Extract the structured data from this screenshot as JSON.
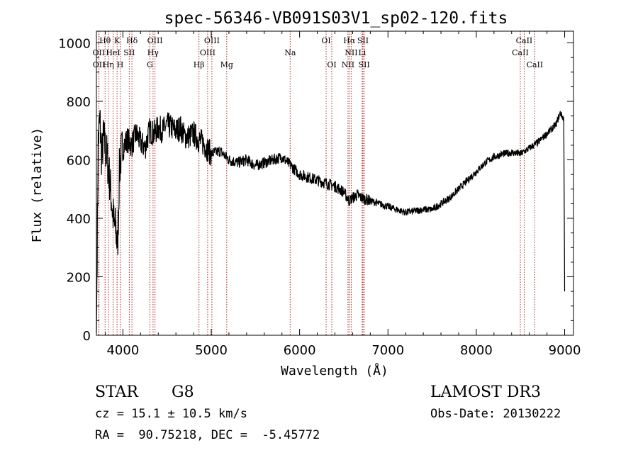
{
  "chart_data": {
    "type": "line",
    "title": "spec-56346-VB091S03V1_sp02-120.fits",
    "xlabel": "Wavelength (Å)",
    "ylabel": "Flux (relative)",
    "xlim": [
      3700,
      9100
    ],
    "ylim": [
      0,
      1040
    ],
    "xticks": [
      4000,
      5000,
      6000,
      7000,
      8000,
      9000
    ],
    "yticks": [
      0,
      200,
      400,
      600,
      800,
      1000
    ],
    "grid": false,
    "series": [
      {
        "name": "flux",
        "color": "#000000",
        "x": [
          3700,
          3720,
          3740,
          3760,
          3780,
          3800,
          3820,
          3840,
          3860,
          3880,
          3900,
          3920,
          3940,
          3960,
          3980,
          4000,
          4050,
          4100,
          4150,
          4200,
          4250,
          4300,
          4350,
          4400,
          4450,
          4500,
          4550,
          4600,
          4650,
          4700,
          4750,
          4800,
          4850,
          4900,
          4950,
          5000,
          5100,
          5200,
          5300,
          5400,
          5500,
          5600,
          5700,
          5800,
          5900,
          6000,
          6100,
          6200,
          6300,
          6400,
          6500,
          6560,
          6600,
          6650,
          6700,
          6800,
          6900,
          7000,
          7100,
          7200,
          7300,
          7400,
          7500,
          7600,
          7700,
          7800,
          7900,
          8000,
          8100,
          8200,
          8300,
          8400,
          8500,
          8600,
          8700,
          8800,
          8900,
          8950,
          8990,
          9000
        ],
        "y": [
          10,
          660,
          740,
          600,
          680,
          640,
          610,
          560,
          500,
          430,
          380,
          360,
          300,
          560,
          620,
          640,
          670,
          650,
          690,
          660,
          640,
          700,
          690,
          710,
          700,
          720,
          710,
          700,
          710,
          680,
          680,
          690,
          670,
          660,
          640,
          620,
          630,
          600,
          590,
          600,
          580,
          590,
          600,
          610,
          580,
          550,
          540,
          530,
          520,
          510,
          490,
          460,
          470,
          480,
          470,
          460,
          450,
          440,
          430,
          420,
          425,
          430,
          430,
          450,
          470,
          500,
          530,
          560,
          590,
          610,
          620,
          625,
          620,
          640,
          660,
          690,
          720,
          760,
          740,
          150
        ]
      }
    ],
    "spectral_lines": [
      {
        "label": "Hθ",
        "x": 3798,
        "row": 0
      },
      {
        "label": "K",
        "x": 3934,
        "row": 0
      },
      {
        "label": "Hδ",
        "x": 4102,
        "row": 0
      },
      {
        "label": "OIII",
        "x": 4363,
        "row": 0
      },
      {
        "label": "OIII",
        "x": 5007,
        "row": 0
      },
      {
        "label": "OI",
        "x": 6300,
        "row": 0
      },
      {
        "label": "Hα",
        "x": 6563,
        "row": 0
      },
      {
        "label": "SII",
        "x": 6717,
        "row": 0
      },
      {
        "label": "CaII",
        "x": 8542,
        "row": 0
      },
      {
        "label": "OII",
        "x": 3727,
        "row": 1
      },
      {
        "label": "HeI",
        "x": 3889,
        "row": 1
      },
      {
        "label": "SII",
        "x": 4072,
        "row": 1
      },
      {
        "label": "Hγ",
        "x": 4341,
        "row": 1
      },
      {
        "label": "OIII",
        "x": 4959,
        "row": 1
      },
      {
        "label": "Na",
        "x": 5893,
        "row": 1
      },
      {
        "label": "NII",
        "x": 6584,
        "row": 1
      },
      {
        "label": "Li",
        "x": 6708,
        "row": 1
      },
      {
        "label": "CaII",
        "x": 8498,
        "row": 1
      },
      {
        "label": "OII",
        "x": 3729,
        "row": 2
      },
      {
        "label": "Hη",
        "x": 3835,
        "row": 2
      },
      {
        "label": "H",
        "x": 3969,
        "row": 2
      },
      {
        "label": "G",
        "x": 4305,
        "row": 2
      },
      {
        "label": "Hβ",
        "x": 4861,
        "row": 2
      },
      {
        "label": "Mg",
        "x": 5175,
        "row": 2
      },
      {
        "label": "OI",
        "x": 6364,
        "row": 2
      },
      {
        "label": "NII",
        "x": 6548,
        "row": 2
      },
      {
        "label": "SII",
        "x": 6731,
        "row": 2
      },
      {
        "label": "CaII",
        "x": 8662,
        "row": 2
      }
    ]
  },
  "info": {
    "class_label": "STAR",
    "subclass": "G8",
    "survey": "LAMOST DR3",
    "redshift_line": "cz = 15.1 ± 10.5 km/s",
    "obs_date_line": "Obs-Date: 20130222",
    "coords_line": "RA =  90.75218, DEC =  -5.45772"
  }
}
